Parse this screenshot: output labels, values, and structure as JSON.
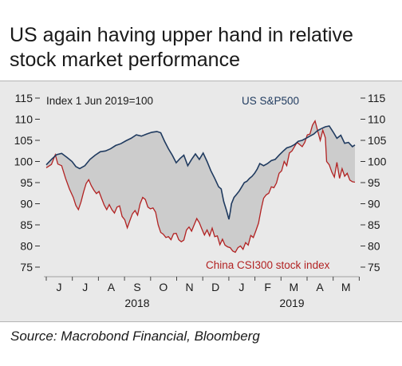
{
  "title": "US again having upper hand in relative stock market performance",
  "source": "Source: Macrobond Financial, Bloomberg",
  "chart_data": {
    "type": "line",
    "index_note": "Index 1 Jun 2019=100",
    "ylim": [
      75,
      115
    ],
    "yticks": [
      75,
      80,
      85,
      90,
      95,
      100,
      105,
      110,
      115
    ],
    "xlim": [
      0,
      12
    ],
    "month_ticks": [
      "J",
      "J",
      "A",
      "S",
      "O",
      "N",
      "D",
      "J",
      "F",
      "M",
      "A",
      "M"
    ],
    "year_labels": [
      "2018",
      "2019"
    ],
    "fill_between": true,
    "series": [
      {
        "name": "US S&P500",
        "color": "#1f3a5f",
        "points": [
          [
            -0.3,
            99.2
          ],
          [
            -0.1,
            100.5
          ],
          [
            0.1,
            101.6
          ],
          [
            0.3,
            101.9
          ],
          [
            0.5,
            101.0
          ],
          [
            0.7,
            100.0
          ],
          [
            0.85,
            98.8
          ],
          [
            1.0,
            98.3
          ],
          [
            1.2,
            99.0
          ],
          [
            1.4,
            100.5
          ],
          [
            1.6,
            101.5
          ],
          [
            1.8,
            102.3
          ],
          [
            2.0,
            102.5
          ],
          [
            2.2,
            103.0
          ],
          [
            2.4,
            103.8
          ],
          [
            2.6,
            104.2
          ],
          [
            2.8,
            104.9
          ],
          [
            3.0,
            105.5
          ],
          [
            3.2,
            106.3
          ],
          [
            3.4,
            106.0
          ],
          [
            3.6,
            106.5
          ],
          [
            3.8,
            106.9
          ],
          [
            4.0,
            107.1
          ],
          [
            4.15,
            106.8
          ],
          [
            4.3,
            104.8
          ],
          [
            4.45,
            103.0
          ],
          [
            4.6,
            101.5
          ],
          [
            4.75,
            99.7
          ],
          [
            4.9,
            100.7
          ],
          [
            5.05,
            101.5
          ],
          [
            5.2,
            99.0
          ],
          [
            5.35,
            100.5
          ],
          [
            5.5,
            101.8
          ],
          [
            5.65,
            100.5
          ],
          [
            5.8,
            102.0
          ],
          [
            5.95,
            100.0
          ],
          [
            6.1,
            97.8
          ],
          [
            6.25,
            96.0
          ],
          [
            6.4,
            94.0
          ],
          [
            6.5,
            93.5
          ],
          [
            6.6,
            90.5
          ],
          [
            6.7,
            88.5
          ],
          [
            6.8,
            86.3
          ],
          [
            6.85,
            88.0
          ],
          [
            6.9,
            90.0
          ],
          [
            7.0,
            91.5
          ],
          [
            7.1,
            92.2
          ],
          [
            7.2,
            93.0
          ],
          [
            7.3,
            94.0
          ],
          [
            7.4,
            95.0
          ],
          [
            7.5,
            95.3
          ],
          [
            7.6,
            96.0
          ],
          [
            7.7,
            96.5
          ],
          [
            7.8,
            97.2
          ],
          [
            7.9,
            98.2
          ],
          [
            8.0,
            99.5
          ],
          [
            8.15,
            99.0
          ],
          [
            8.3,
            99.5
          ],
          [
            8.45,
            100.2
          ],
          [
            8.6,
            100.5
          ],
          [
            8.75,
            101.5
          ],
          [
            8.9,
            102.4
          ],
          [
            9.05,
            103.2
          ],
          [
            9.2,
            103.5
          ],
          [
            9.35,
            104.0
          ],
          [
            9.5,
            104.8
          ],
          [
            9.65,
            105.0
          ],
          [
            9.8,
            105.5
          ],
          [
            9.95,
            106.0
          ],
          [
            10.1,
            106.5
          ],
          [
            10.25,
            107.3
          ],
          [
            10.4,
            107.8
          ],
          [
            10.55,
            108.2
          ],
          [
            10.7,
            108.4
          ],
          [
            10.85,
            107.0
          ],
          [
            11.0,
            105.5
          ],
          [
            11.15,
            106.2
          ],
          [
            11.3,
            104.3
          ],
          [
            11.45,
            104.5
          ],
          [
            11.6,
            103.5
          ],
          [
            11.7,
            103.9
          ]
        ]
      },
      {
        "name": "China CSI300 stock index",
        "color": "#b22222",
        "points": [
          [
            -0.3,
            98.5
          ],
          [
            -0.1,
            99.3
          ],
          [
            0.05,
            101.6
          ],
          [
            0.15,
            99.4
          ],
          [
            0.3,
            99.0
          ],
          [
            0.45,
            96.0
          ],
          [
            0.6,
            93.5
          ],
          [
            0.75,
            91.5
          ],
          [
            0.85,
            89.6
          ],
          [
            0.95,
            88.6
          ],
          [
            1.05,
            90.4
          ],
          [
            1.15,
            92.8
          ],
          [
            1.25,
            94.8
          ],
          [
            1.35,
            95.7
          ],
          [
            1.45,
            94.3
          ],
          [
            1.55,
            93.2
          ],
          [
            1.65,
            92.4
          ],
          [
            1.75,
            92.9
          ],
          [
            1.85,
            91.3
          ],
          [
            1.95,
            89.7
          ],
          [
            2.05,
            88.6
          ],
          [
            2.15,
            89.8
          ],
          [
            2.25,
            88.6
          ],
          [
            2.35,
            87.8
          ],
          [
            2.45,
            89.2
          ],
          [
            2.55,
            89.5
          ],
          [
            2.65,
            87.0
          ],
          [
            2.75,
            86.2
          ],
          [
            2.85,
            84.3
          ],
          [
            2.95,
            86.0
          ],
          [
            3.05,
            87.6
          ],
          [
            3.15,
            88.4
          ],
          [
            3.25,
            87.3
          ],
          [
            3.35,
            90.0
          ],
          [
            3.45,
            91.5
          ],
          [
            3.55,
            91.0
          ],
          [
            3.65,
            89.2
          ],
          [
            3.75,
            88.8
          ],
          [
            3.85,
            89.0
          ],
          [
            3.95,
            88.0
          ],
          [
            4.05,
            85.0
          ],
          [
            4.15,
            83.2
          ],
          [
            4.25,
            82.8
          ],
          [
            4.35,
            82.0
          ],
          [
            4.45,
            82.2
          ],
          [
            4.55,
            81.5
          ],
          [
            4.65,
            82.9
          ],
          [
            4.75,
            83.0
          ],
          [
            4.85,
            81.5
          ],
          [
            4.95,
            81.0
          ],
          [
            5.05,
            81.4
          ],
          [
            5.15,
            83.8
          ],
          [
            5.25,
            84.5
          ],
          [
            5.35,
            83.5
          ],
          [
            5.45,
            85.0
          ],
          [
            5.55,
            86.5
          ],
          [
            5.65,
            85.5
          ],
          [
            5.75,
            84.0
          ],
          [
            5.85,
            82.6
          ],
          [
            5.95,
            83.8
          ],
          [
            6.05,
            82.4
          ],
          [
            6.15,
            84.2
          ],
          [
            6.25,
            82.2
          ],
          [
            6.35,
            82.4
          ],
          [
            6.45,
            80.3
          ],
          [
            6.55,
            81.6
          ],
          [
            6.65,
            80.2
          ],
          [
            6.75,
            79.8
          ],
          [
            6.85,
            79.6
          ],
          [
            6.95,
            78.8
          ],
          [
            7.05,
            78.5
          ],
          [
            7.15,
            79.6
          ],
          [
            7.25,
            80.0
          ],
          [
            7.35,
            79.2
          ],
          [
            7.45,
            80.8
          ],
          [
            7.55,
            80.2
          ],
          [
            7.65,
            82.5
          ],
          [
            7.75,
            82.0
          ],
          [
            7.85,
            83.6
          ],
          [
            7.95,
            85.4
          ],
          [
            8.05,
            88.6
          ],
          [
            8.15,
            91.3
          ],
          [
            8.25,
            92.1
          ],
          [
            8.35,
            92.5
          ],
          [
            8.45,
            94.0
          ],
          [
            8.55,
            93.8
          ],
          [
            8.65,
            94.9
          ],
          [
            8.75,
            97.2
          ],
          [
            8.85,
            97.8
          ],
          [
            8.95,
            100.0
          ],
          [
            9.05,
            99.0
          ],
          [
            9.15,
            102.0
          ],
          [
            9.25,
            102.5
          ],
          [
            9.35,
            103.5
          ],
          [
            9.45,
            104.5
          ],
          [
            9.55,
            104.0
          ],
          [
            9.65,
            103.5
          ],
          [
            9.75,
            104.5
          ],
          [
            9.85,
            106.3
          ],
          [
            9.95,
            106.5
          ],
          [
            10.05,
            108.6
          ],
          [
            10.15,
            109.6
          ],
          [
            10.25,
            107.3
          ],
          [
            10.35,
            105.0
          ],
          [
            10.45,
            107.4
          ],
          [
            10.55,
            105.6
          ],
          [
            10.6,
            100.0
          ],
          [
            10.7,
            99.2
          ],
          [
            10.8,
            97.5
          ],
          [
            10.9,
            96.3
          ],
          [
            11.0,
            99.8
          ],
          [
            11.1,
            96.0
          ],
          [
            11.2,
            98.3
          ],
          [
            11.3,
            96.5
          ],
          [
            11.4,
            97.2
          ],
          [
            11.5,
            95.6
          ],
          [
            11.6,
            95.2
          ],
          [
            11.7,
            95.1
          ]
        ]
      }
    ]
  }
}
